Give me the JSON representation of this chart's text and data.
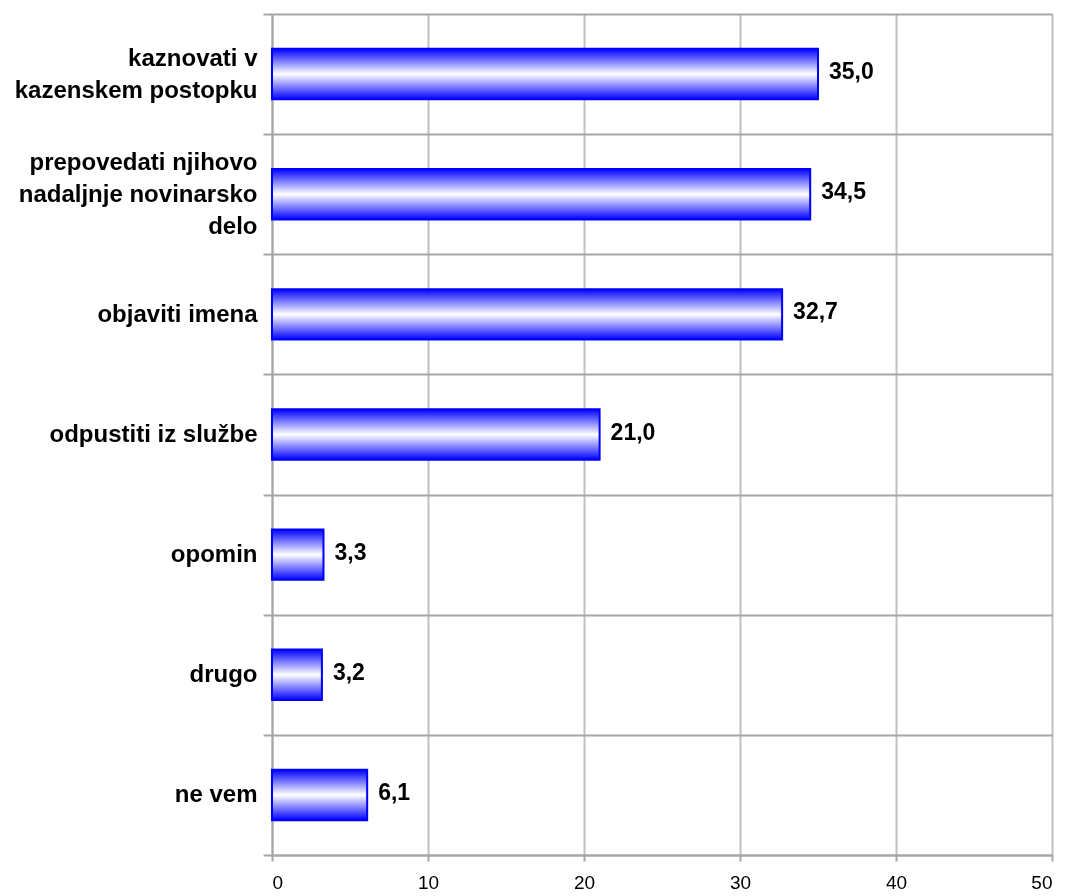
{
  "chart_data": {
    "type": "bar",
    "orientation": "horizontal",
    "categories": [
      "kaznovati v kazenskem postopku",
      "prepovedati njihovo nadaljnje novinarsko delo",
      "objaviti imena",
      "odpustiti iz službe",
      "opomin",
      "drugo",
      "ne vem"
    ],
    "values": [
      35.0,
      34.5,
      32.7,
      21.0,
      3.3,
      3.2,
      6.1
    ],
    "value_labels": [
      "35,0",
      "34,5",
      "32,7",
      "21,0",
      "3,3",
      "3,2",
      "6,1"
    ],
    "color": "#0000ff",
    "xlim": [
      0,
      50
    ],
    "xticks": [
      0,
      10,
      20,
      30,
      40,
      50
    ],
    "grid": true
  }
}
